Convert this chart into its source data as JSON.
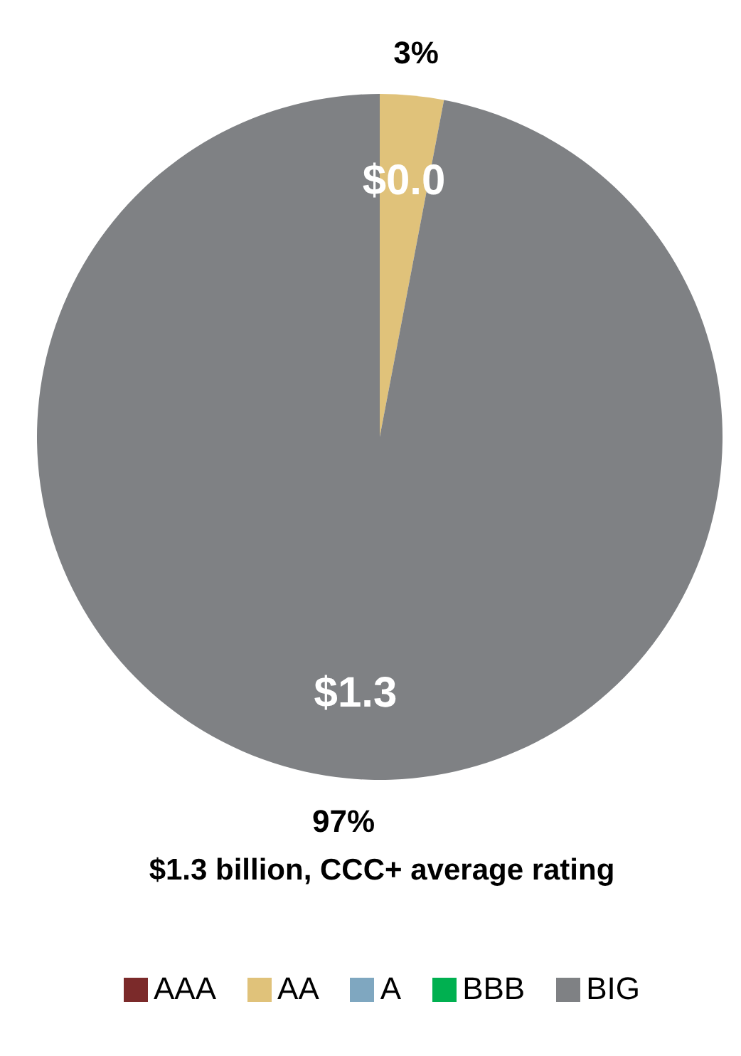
{
  "chart_data": {
    "type": "pie",
    "title": "$1.3 billion, CCC+ average rating",
    "categories": [
      "AAA",
      "AA",
      "A",
      "BBB",
      "BIG"
    ],
    "values": [
      0,
      3,
      0,
      0,
      97
    ],
    "colors": [
      "#7b2a2a",
      "#e0c27a",
      "#7fa7c0",
      "#00b050",
      "#7f8184"
    ],
    "value_labels": [
      null,
      "3%",
      null,
      null,
      "97%"
    ],
    "annotations": [
      {
        "text": "$0.0",
        "x": "AA"
      },
      {
        "text": "$1.3",
        "x": "BIG"
      }
    ],
    "legend": "bottom"
  }
}
